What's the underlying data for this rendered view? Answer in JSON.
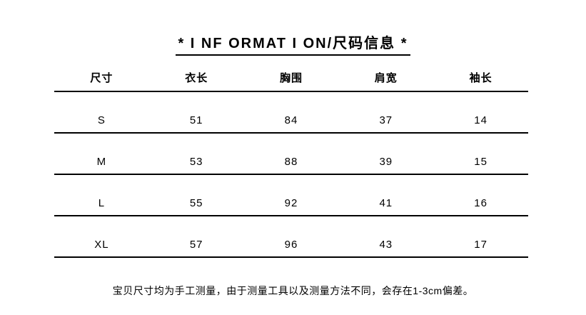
{
  "title": "* I NF ORMAT I ON/尺码信息 *",
  "table": {
    "headers": [
      "尺寸",
      "衣长",
      "胸围",
      "肩宽",
      "袖长"
    ],
    "rows": [
      [
        "S",
        "51",
        "84",
        "37",
        "14"
      ],
      [
        "M",
        "53",
        "88",
        "39",
        "15"
      ],
      [
        "L",
        "55",
        "92",
        "41",
        "16"
      ],
      [
        "XL",
        "57",
        "96",
        "43",
        "17"
      ]
    ]
  },
  "footer_note": "宝贝尺寸均为手工测量，由于测量工具以及测量方法不同，会存在1-3cm偏差。",
  "colors": {
    "background": "#ffffff",
    "text": "#000000",
    "rule": "#000000"
  }
}
